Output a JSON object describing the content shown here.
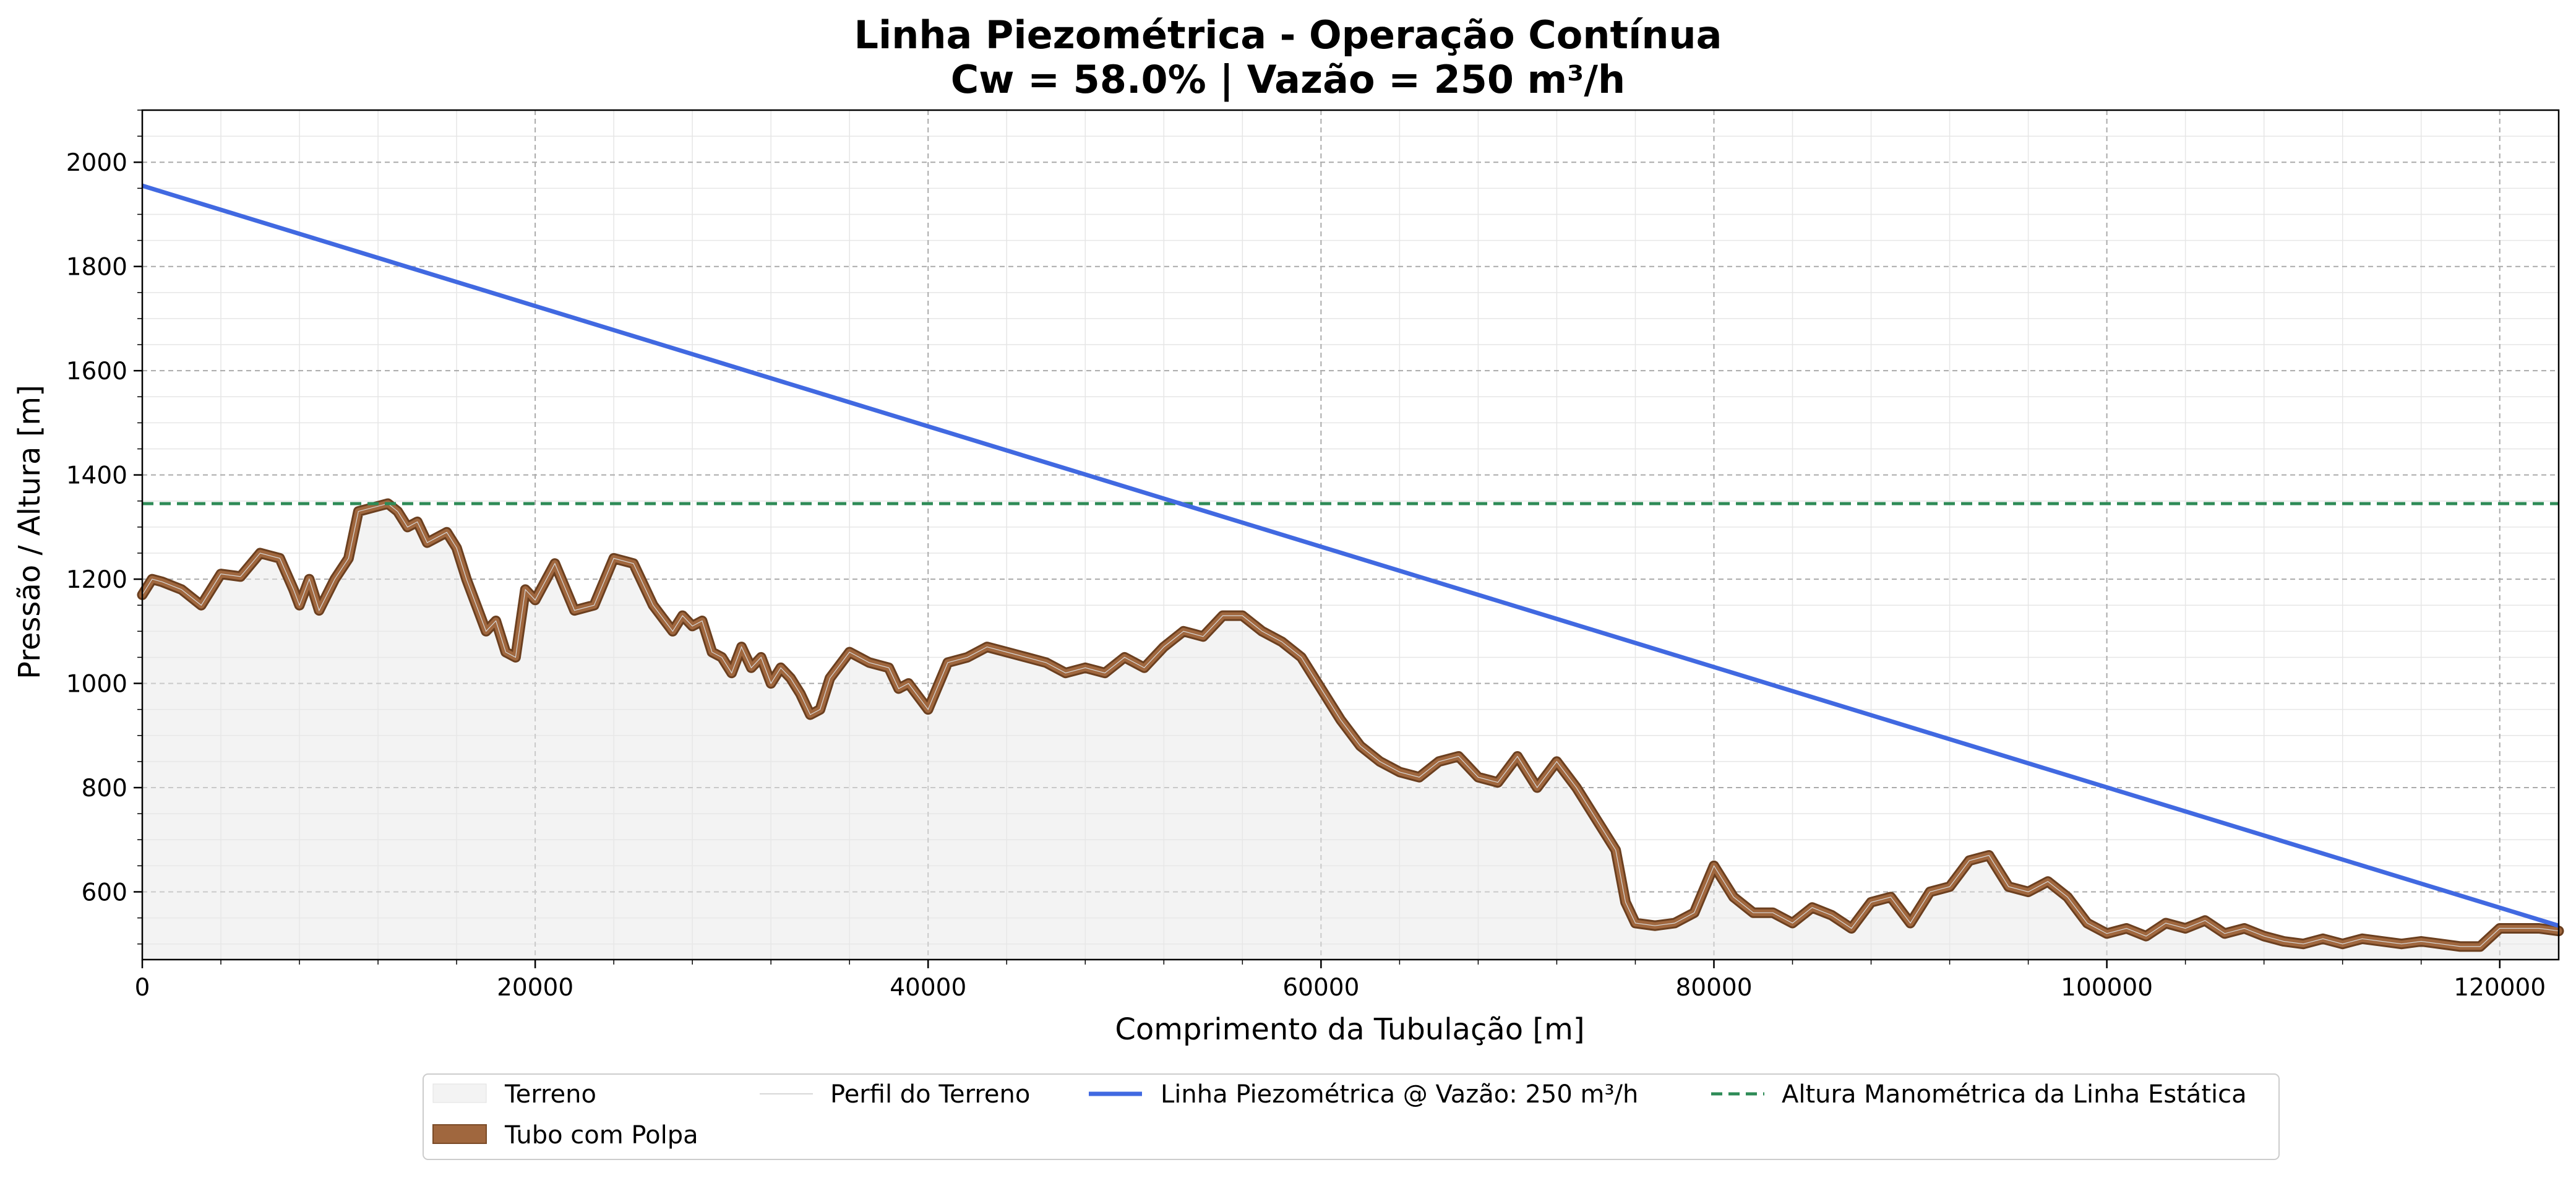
{
  "chart_data": {
    "type": "area",
    "title": "Linha Piezométrica - Operação Contínua",
    "subtitle": "Cw = 58.0% | Vazão = 250 m³/h",
    "xlabel": "Comprimento da Tubulação [m]",
    "ylabel": "Pressão / Altura [m]",
    "xlim": [
      0,
      123000
    ],
    "ylim": [
      470,
      2100
    ],
    "xticks": [
      0,
      20000,
      40000,
      60000,
      80000,
      100000,
      120000
    ],
    "yticks": [
      600,
      800,
      1000,
      1200,
      1400,
      1600,
      1800,
      2000
    ],
    "grid": true,
    "legend_position": "lower-center",
    "legend": [
      "Terreno",
      "Tubo com Polpa",
      "Perfil do Terreno",
      "Linha Piezométrica @ Vazão: 250 m³/h",
      "Altura Manométrica da Linha Estática"
    ],
    "series": [
      {
        "name": "Perfil do Terreno",
        "color": "#99582a",
        "x": [
          0,
          500,
          1000,
          2000,
          3000,
          4000,
          5000,
          6000,
          7000,
          7700,
          8000,
          8500,
          9000,
          9800,
          10500,
          11000,
          12000,
          12500,
          13000,
          13500,
          14000,
          14500,
          15000,
          15500,
          16000,
          16500,
          17000,
          17500,
          18000,
          18500,
          19000,
          19500,
          20000,
          21000,
          22000,
          23000,
          24000,
          25000,
          26000,
          27000,
          27500,
          28000,
          28500,
          29000,
          29500,
          30000,
          30500,
          31000,
          31500,
          32000,
          32500,
          33000,
          33500,
          34000,
          34500,
          35000,
          36000,
          37000,
          38000,
          38500,
          39000,
          40000,
          41000,
          42000,
          43000,
          44000,
          45000,
          46000,
          47000,
          48000,
          49000,
          50000,
          51000,
          52000,
          53000,
          54000,
          55000,
          56000,
          57000,
          58000,
          59000,
          60000,
          61000,
          62000,
          63000,
          64000,
          65000,
          66000,
          67000,
          68000,
          69000,
          70000,
          71000,
          72000,
          73000,
          74000,
          75000,
          75500,
          76000,
          77000,
          78000,
          79000,
          80000,
          81000,
          82000,
          83000,
          84000,
          85000,
          86000,
          87000,
          88000,
          89000,
          90000,
          91000,
          92000,
          93000,
          94000,
          95000,
          96000,
          97000,
          98000,
          99000,
          100000,
          101000,
          102000,
          103000,
          104000,
          105000,
          106000,
          107000,
          108000,
          109000,
          110000,
          111000,
          112000,
          113000,
          114000,
          115000,
          116000,
          117000,
          118000,
          119000,
          120000,
          121000,
          122000,
          123000
        ],
        "y": [
          1170,
          1200,
          1195,
          1180,
          1150,
          1210,
          1205,
          1250,
          1240,
          1180,
          1150,
          1200,
          1140,
          1200,
          1240,
          1330,
          1340,
          1345,
          1330,
          1300,
          1310,
          1270,
          1280,
          1290,
          1260,
          1200,
          1150,
          1100,
          1120,
          1060,
          1050,
          1180,
          1160,
          1230,
          1140,
          1150,
          1240,
          1230,
          1150,
          1100,
          1130,
          1110,
          1120,
          1060,
          1050,
          1020,
          1070,
          1030,
          1050,
          1000,
          1030,
          1010,
          980,
          940,
          950,
          1010,
          1060,
          1040,
          1030,
          990,
          1000,
          950,
          1040,
          1050,
          1070,
          1060,
          1050,
          1040,
          1020,
          1030,
          1020,
          1050,
          1030,
          1070,
          1100,
          1090,
          1130,
          1130,
          1100,
          1080,
          1050,
          990,
          930,
          880,
          850,
          830,
          820,
          850,
          860,
          820,
          810,
          860,
          800,
          850,
          800,
          740,
          680,
          580,
          540,
          535,
          540,
          560,
          650,
          590,
          560,
          560,
          540,
          570,
          555,
          530,
          580,
          590,
          540,
          600,
          610,
          660,
          670,
          610,
          600,
          620,
          590,
          540,
          520,
          530,
          515,
          540,
          530,
          545,
          520,
          530,
          515,
          505,
          500,
          510,
          500,
          510,
          505,
          500,
          505,
          500,
          495,
          495,
          530,
          530,
          530,
          525
        ]
      },
      {
        "name": "Linha Piezométrica @ Vazão: 250 m³/h",
        "color": "#4169e1",
        "x": [
          0,
          123000
        ],
        "y": [
          1955,
          535
        ]
      },
      {
        "name": "Altura Manométrica da Linha Estática",
        "color": "#2e8b57",
        "x": [
          0,
          123000
        ],
        "y": [
          1345,
          1345
        ]
      }
    ]
  }
}
